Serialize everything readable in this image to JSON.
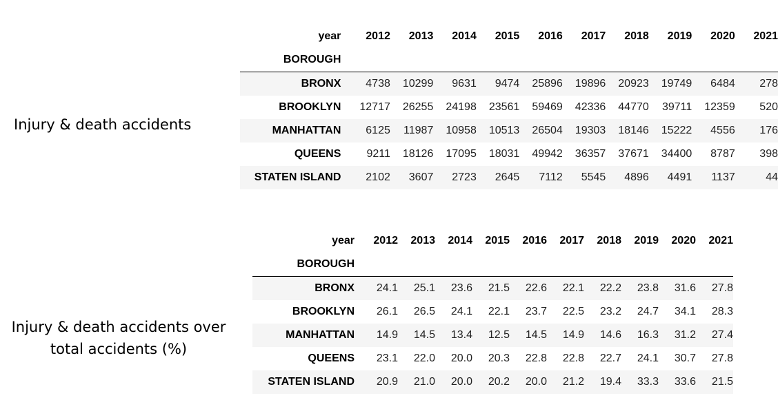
{
  "labels": {
    "table1": "Injury & death accidents",
    "table2_line1": "Injury & death accidents over",
    "table2_line2": "total accidents (%)"
  },
  "chart_data": [
    {
      "type": "table",
      "columns_label": "year",
      "index_label": "BOROUGH",
      "columns": [
        "2012",
        "2013",
        "2014",
        "2015",
        "2016",
        "2017",
        "2018",
        "2019",
        "2020",
        "2021"
      ],
      "rows": [
        {
          "name": "BRONX",
          "values": [
            "4738",
            "10299",
            "9631",
            "9474",
            "25896",
            "19896",
            "20923",
            "19749",
            "6484",
            "278"
          ]
        },
        {
          "name": "BROOKLYN",
          "values": [
            "12717",
            "26255",
            "24198",
            "23561",
            "59469",
            "42336",
            "44770",
            "39711",
            "12359",
            "520"
          ]
        },
        {
          "name": "MANHATTAN",
          "values": [
            "6125",
            "11987",
            "10958",
            "10513",
            "26504",
            "19303",
            "18146",
            "15222",
            "4556",
            "176"
          ]
        },
        {
          "name": "QUEENS",
          "values": [
            "9211",
            "18126",
            "17095",
            "18031",
            "49942",
            "36357",
            "37671",
            "34400",
            "8787",
            "398"
          ]
        },
        {
          "name": "STATEN ISLAND",
          "values": [
            "2102",
            "3607",
            "2723",
            "2645",
            "7112",
            "5545",
            "4896",
            "4491",
            "1137",
            "44"
          ]
        }
      ]
    },
    {
      "type": "table",
      "columns_label": "year",
      "index_label": "BOROUGH",
      "columns": [
        "2012",
        "2013",
        "2014",
        "2015",
        "2016",
        "2017",
        "2018",
        "2019",
        "2020",
        "2021"
      ],
      "rows": [
        {
          "name": "BRONX",
          "values": [
            "24.1",
            "25.1",
            "23.6",
            "21.5",
            "22.6",
            "22.1",
            "22.2",
            "23.8",
            "31.6",
            "27.8"
          ]
        },
        {
          "name": "BROOKLYN",
          "values": [
            "26.1",
            "26.5",
            "24.1",
            "22.1",
            "23.7",
            "22.5",
            "23.2",
            "24.7",
            "34.1",
            "28.3"
          ]
        },
        {
          "name": "MANHATTAN",
          "values": [
            "14.9",
            "14.5",
            "13.4",
            "12.5",
            "14.5",
            "14.9",
            "14.6",
            "16.3",
            "31.2",
            "27.4"
          ]
        },
        {
          "name": "QUEENS",
          "values": [
            "23.1",
            "22.0",
            "20.0",
            "20.3",
            "22.8",
            "22.8",
            "22.7",
            "24.1",
            "30.7",
            "27.8"
          ]
        },
        {
          "name": "STATEN ISLAND",
          "values": [
            "20.9",
            "21.0",
            "20.0",
            "20.2",
            "20.0",
            "21.2",
            "19.4",
            "33.3",
            "33.6",
            "21.5"
          ]
        }
      ]
    }
  ]
}
